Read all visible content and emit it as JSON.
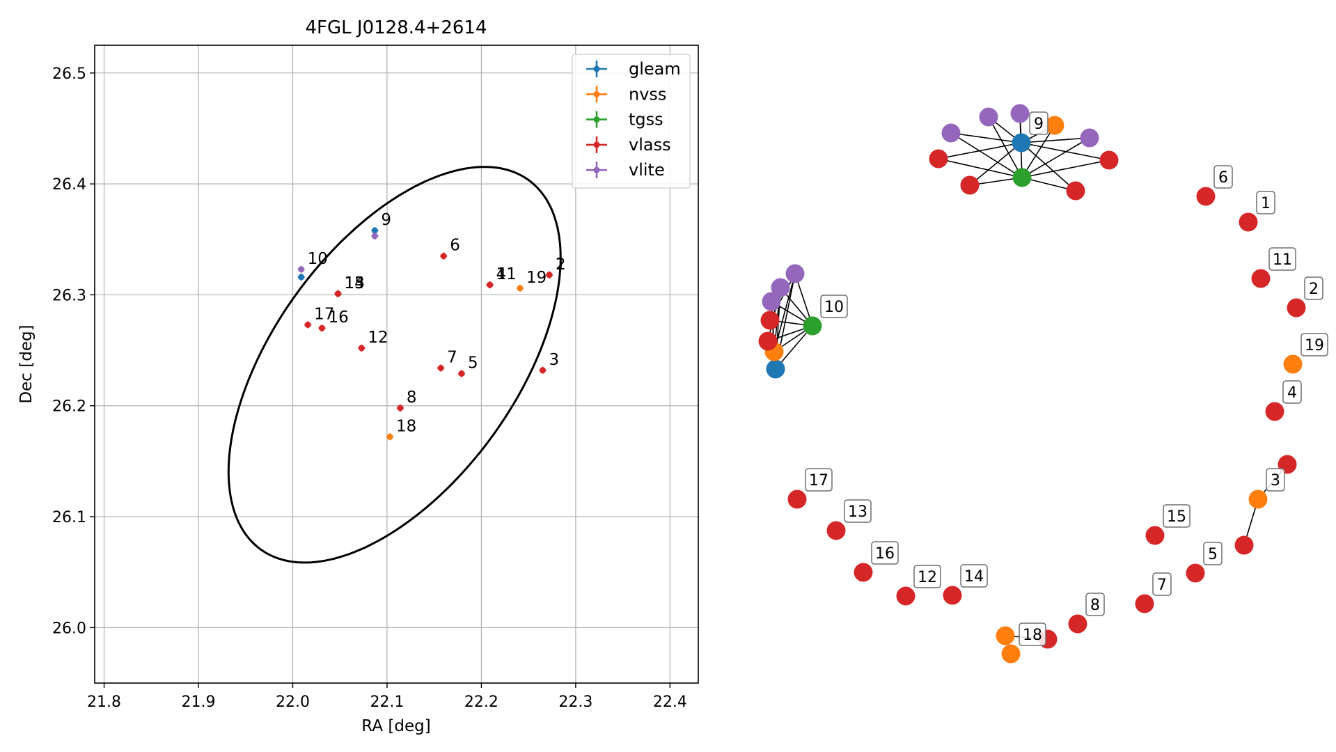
{
  "chart_data": [
    {
      "type": "scatter",
      "title": "4FGL J0128.4+2614",
      "xlabel": "RA [deg]",
      "ylabel": "Dec [deg]",
      "xlim": [
        21.79,
        22.43
      ],
      "ylim": [
        25.95,
        26.525
      ],
      "grid": true,
      "xticks": [
        "21.8",
        "21.9",
        "22.0",
        "22.1",
        "22.2",
        "22.3",
        "22.4"
      ],
      "yticks": [
        "26.0",
        "26.1",
        "26.2",
        "26.3",
        "26.4",
        "26.5"
      ],
      "legend_position": "upper right",
      "ellipse": {
        "center": [
          22.108,
          26.237
        ],
        "semi_axis_a": 0.22,
        "semi_axis_b": 0.12,
        "angle_deg": 45.7,
        "color": "#000000"
      },
      "series": [
        {
          "name": "gleam",
          "color": "#1f77b4",
          "points": [
            {
              "x": 22.087,
              "y": 26.358,
              "label": "9"
            },
            {
              "x": 22.009,
              "y": 26.316,
              "label": ""
            }
          ]
        },
        {
          "name": "nvss",
          "color": "#ff7f0e",
          "points": [
            {
              "x": 22.241,
              "y": 26.306,
              "label": "19"
            },
            {
              "x": 22.103,
              "y": 26.172,
              "label": "18"
            }
          ]
        },
        {
          "name": "tgss",
          "color": "#2ca02c",
          "points": []
        },
        {
          "name": "vlass",
          "color": "#d62728",
          "points": [
            {
              "x": 22.272,
              "y": 26.318,
              "label": "2"
            },
            {
              "x": 22.272,
              "y": 26.318,
              "label": "1"
            },
            {
              "x": 22.209,
              "y": 26.309,
              "label": "4"
            },
            {
              "x": 22.209,
              "y": 26.309,
              "label": "11"
            },
            {
              "x": 22.16,
              "y": 26.335,
              "label": "6"
            },
            {
              "x": 22.048,
              "y": 26.301,
              "label": "14"
            },
            {
              "x": 22.048,
              "y": 26.301,
              "label": "13"
            },
            {
              "x": 22.048,
              "y": 26.301,
              "label": "15"
            },
            {
              "x": 22.016,
              "y": 26.273,
              "label": "17"
            },
            {
              "x": 22.031,
              "y": 26.27,
              "label": "16"
            },
            {
              "x": 22.073,
              "y": 26.252,
              "label": "12"
            },
            {
              "x": 22.157,
              "y": 26.234,
              "label": "7"
            },
            {
              "x": 22.179,
              "y": 26.229,
              "label": "5"
            },
            {
              "x": 22.265,
              "y": 26.232,
              "label": "3"
            },
            {
              "x": 22.114,
              "y": 26.198,
              "label": "8"
            }
          ]
        },
        {
          "name": "vlite",
          "color": "#9467bd",
          "points": [
            {
              "x": 22.087,
              "y": 26.353,
              "label": ""
            },
            {
              "x": 22.009,
              "y": 26.323,
              "label": "10"
            }
          ]
        }
      ]
    },
    {
      "type": "network",
      "colors": {
        "gleam": "#1f77b4",
        "nvss": "#ff7f0e",
        "tgss": "#2ca02c",
        "vlass": "#d62728",
        "vlite": "#9467bd"
      },
      "labels": [
        "9",
        "6",
        "1",
        "11",
        "2",
        "19",
        "4",
        "3",
        "10",
        "17",
        "13",
        "16",
        "12",
        "14",
        "15",
        "5",
        "7",
        "8",
        "18"
      ]
    }
  ]
}
